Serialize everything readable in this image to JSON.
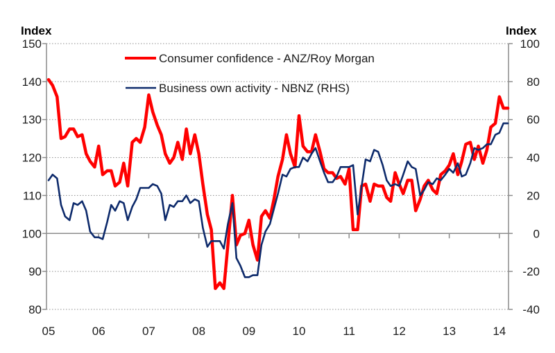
{
  "chart_data": {
    "type": "line",
    "title": "",
    "xlabel": "",
    "left_axis": {
      "title": "Index",
      "ylim": [
        80,
        150
      ],
      "ticks": [
        80,
        90,
        100,
        110,
        120,
        130,
        140,
        150
      ]
    },
    "right_axis": {
      "title": "Index",
      "ylim": [
        -40,
        100
      ],
      "ticks": [
        -40,
        -20,
        0,
        20,
        40,
        60,
        80,
        100
      ]
    },
    "x_axis": {
      "xlim": [
        2005,
        2014.2
      ],
      "ticks": [
        2005,
        2006,
        2007,
        2008,
        2009,
        2010,
        2011,
        2012,
        2013,
        2014
      ],
      "tick_labels": [
        "05",
        "06",
        "07",
        "08",
        "09",
        "10",
        "11",
        "12",
        "13",
        "14"
      ]
    },
    "grid": "horizontal-dotted",
    "legend": {
      "placement": "top-center"
    },
    "series": [
      {
        "name": "Consumer confidence - ANZ/Roy Morgan",
        "axis": "left",
        "color": "#ff0000",
        "x": [
          2005.0,
          2005.08,
          2005.17,
          2005.25,
          2005.33,
          2005.42,
          2005.5,
          2005.58,
          2005.67,
          2005.75,
          2005.83,
          2005.92,
          2006.0,
          2006.08,
          2006.17,
          2006.25,
          2006.33,
          2006.42,
          2006.5,
          2006.58,
          2006.67,
          2006.75,
          2006.83,
          2006.92,
          2007.0,
          2007.08,
          2007.17,
          2007.25,
          2007.33,
          2007.42,
          2007.5,
          2007.58,
          2007.67,
          2007.75,
          2007.83,
          2007.92,
          2008.0,
          2008.08,
          2008.17,
          2008.25,
          2008.33,
          2008.42,
          2008.5,
          2008.58,
          2008.67,
          2008.75,
          2008.83,
          2008.92,
          2009.0,
          2009.08,
          2009.17,
          2009.25,
          2009.33,
          2009.42,
          2009.5,
          2009.58,
          2009.67,
          2009.75,
          2009.83,
          2009.92,
          2010.0,
          2010.08,
          2010.17,
          2010.25,
          2010.33,
          2010.42,
          2010.5,
          2010.58,
          2010.67,
          2010.75,
          2010.83,
          2010.92,
          2011.0,
          2011.08,
          2011.17,
          2011.25,
          2011.33,
          2011.42,
          2011.5,
          2011.58,
          2011.67,
          2011.75,
          2011.83,
          2011.92,
          2012.0,
          2012.08,
          2012.17,
          2012.25,
          2012.33,
          2012.42,
          2012.5,
          2012.58,
          2012.67,
          2012.75,
          2012.83,
          2012.92,
          2013.0,
          2013.08,
          2013.17,
          2013.25,
          2013.33,
          2013.42,
          2013.5,
          2013.58,
          2013.67,
          2013.75,
          2013.83,
          2013.92,
          2014.0,
          2014.08,
          2014.17
        ],
        "values": [
          140.5,
          139,
          136,
          125,
          125.5,
          127.5,
          127.5,
          125.5,
          126,
          121,
          119,
          117.5,
          123,
          115.5,
          116.5,
          116.5,
          112.5,
          113.5,
          118.5,
          112.5,
          124,
          125,
          124,
          128,
          136.5,
          132,
          128.5,
          126,
          121,
          118.5,
          120,
          124,
          119.5,
          127.5,
          121,
          126,
          121,
          113,
          105,
          101,
          85.5,
          87,
          85.5,
          97,
          110,
          97,
          99.5,
          100,
          103.5,
          97,
          93,
          104.5,
          106,
          104,
          109,
          115,
          119.5,
          126,
          121,
          117.5,
          131,
          123,
          121.5,
          121.5,
          126,
          121.5,
          117,
          116,
          116,
          114.5,
          115,
          113,
          117,
          101,
          101,
          112.5,
          113,
          108.5,
          113,
          112.5,
          112.5,
          109.5,
          108.5,
          116,
          113,
          110.5,
          114,
          114,
          106,
          109,
          112.5,
          114,
          111.5,
          110.5,
          115.5,
          116.5,
          118,
          121,
          115.5,
          119,
          123.5,
          124,
          119.5,
          123,
          118.5,
          122,
          128,
          129,
          136,
          133,
          133
        ]
      },
      {
        "name": "Business own activity - NBNZ (RHS)",
        "axis": "right",
        "color": "#0d2a6b",
        "x": [
          2005.0,
          2005.08,
          2005.17,
          2005.25,
          2005.33,
          2005.42,
          2005.5,
          2005.58,
          2005.67,
          2005.75,
          2005.83,
          2005.92,
          2006.0,
          2006.08,
          2006.17,
          2006.25,
          2006.33,
          2006.42,
          2006.5,
          2006.58,
          2006.67,
          2006.75,
          2006.83,
          2006.92,
          2007.0,
          2007.08,
          2007.17,
          2007.25,
          2007.33,
          2007.42,
          2007.5,
          2007.58,
          2007.67,
          2007.75,
          2007.83,
          2007.92,
          2008.0,
          2008.08,
          2008.17,
          2008.25,
          2008.33,
          2008.42,
          2008.5,
          2008.58,
          2008.67,
          2008.75,
          2008.83,
          2008.92,
          2009.0,
          2009.08,
          2009.17,
          2009.25,
          2009.33,
          2009.42,
          2009.5,
          2009.58,
          2009.67,
          2009.75,
          2009.83,
          2009.92,
          2010.0,
          2010.08,
          2010.17,
          2010.25,
          2010.33,
          2010.42,
          2010.5,
          2010.58,
          2010.67,
          2010.75,
          2010.83,
          2010.92,
          2011.0,
          2011.08,
          2011.17,
          2011.25,
          2011.33,
          2011.42,
          2011.5,
          2011.58,
          2011.67,
          2011.75,
          2011.83,
          2011.92,
          2012.0,
          2012.08,
          2012.17,
          2012.25,
          2012.33,
          2012.42,
          2012.5,
          2012.58,
          2012.67,
          2012.75,
          2012.83,
          2012.92,
          2013.0,
          2013.08,
          2013.17,
          2013.25,
          2013.33,
          2013.42,
          2013.5,
          2013.58,
          2013.67,
          2013.75,
          2013.83,
          2013.92,
          2014.0,
          2014.08,
          2014.17
        ],
        "values": [
          28,
          31,
          29,
          15,
          9,
          7,
          16,
          15,
          17,
          12,
          1,
          -2,
          -2,
          -3,
          6,
          15,
          12,
          17,
          16,
          7,
          14,
          18,
          24,
          24,
          24,
          26,
          25,
          21,
          7,
          15,
          14,
          17,
          17,
          20,
          16,
          18,
          17,
          3,
          -7,
          -4,
          -4,
          -4,
          -8,
          5,
          16,
          -13,
          -17,
          -23,
          -23,
          -22,
          -22,
          -6,
          1,
          5,
          13,
          21,
          31,
          30,
          34,
          35,
          35,
          40,
          38,
          42,
          45,
          38,
          32,
          27,
          27,
          30,
          35,
          35,
          35,
          36,
          10,
          25,
          39,
          38,
          44,
          43,
          36,
          28,
          25,
          26,
          25,
          31,
          38,
          35,
          34,
          20,
          23,
          27,
          26,
          29,
          28,
          31,
          34,
          32,
          37,
          30,
          31,
          37,
          45,
          44,
          45,
          47,
          47,
          52,
          53,
          58,
          58
        ]
      }
    ]
  }
}
